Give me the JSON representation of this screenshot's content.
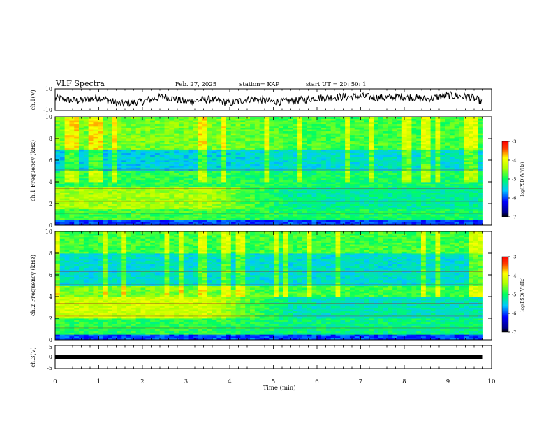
{
  "header": {
    "title": "VLF Spectra",
    "date": "Feb. 27, 2025",
    "station": "station= KAP",
    "start": "start  UT  =   20: 50: 1"
  },
  "colorbar": {
    "label": "log(PSD)(V²/Hz)",
    "ticks": [
      "-3",
      "-4",
      "-5",
      "-6",
      "-7"
    ]
  },
  "chart_data": [
    {
      "type": "line",
      "panel": "ch1-waveform",
      "ylabel": "ch.1(V)",
      "ylim": [
        -10,
        10
      ],
      "y_tick_labels": [
        "10",
        "-10"
      ],
      "x": [
        0,
        0.5,
        1,
        1.5,
        2,
        2.5,
        3,
        3.5,
        4,
        4.5,
        5,
        5.5,
        6,
        6.5,
        7,
        7.5,
        8,
        8.5,
        9,
        9.5,
        9.8
      ],
      "y": [
        1.5,
        -1,
        2,
        -4,
        -1.5,
        3,
        -2,
        0.5,
        -3,
        1,
        -2,
        -1,
        1.5,
        2.5,
        3,
        1.5,
        3,
        0.5,
        4,
        2.5,
        -2
      ]
    },
    {
      "type": "heatmap",
      "panel": "ch1-spectrogram",
      "ylabel": "ch.1 Frequency (kHz)",
      "ylim": [
        0,
        10
      ],
      "y_tick_labels": [
        "0",
        "2",
        "4",
        "6",
        "8",
        "10"
      ],
      "x_range_min": [
        0,
        9.8
      ],
      "zlim": [
        -7,
        -3
      ],
      "mean_log_psd_by_band_early": [
        {
          "band_khz": [
            0,
            0.5
          ],
          "value": -6.0
        },
        {
          "band_khz": [
            0.5,
            1.5
          ],
          "value": -4.8
        },
        {
          "band_khz": [
            1.5,
            3.5
          ],
          "value": -4.4
        },
        {
          "band_khz": [
            3.5,
            5
          ],
          "value": -4.9
        },
        {
          "band_khz": [
            5,
            7
          ],
          "value": -5.5
        },
        {
          "band_khz": [
            7,
            10
          ],
          "value": -4.6
        }
      ],
      "mean_log_psd_by_band_late": [
        {
          "band_khz": [
            0,
            0.5
          ],
          "value": -6.0
        },
        {
          "band_khz": [
            0.5,
            1.5
          ],
          "value": -5.0
        },
        {
          "band_khz": [
            1.5,
            3.5
          ],
          "value": -5.2
        },
        {
          "band_khz": [
            3.5,
            5
          ],
          "value": -5.0
        },
        {
          "band_khz": [
            5,
            7
          ],
          "value": -5.4
        },
        {
          "band_khz": [
            7,
            10
          ],
          "value": -4.8
        }
      ]
    },
    {
      "type": "heatmap",
      "panel": "ch2-spectrogram",
      "ylabel": "ch.2 Frequency (kHz)",
      "ylim": [
        0,
        10
      ],
      "y_tick_labels": [
        "0",
        "2",
        "4",
        "6",
        "8",
        "10"
      ],
      "x_range_min": [
        0,
        9.8
      ],
      "zlim": [
        -7,
        -3
      ],
      "mean_log_psd_by_band_early": [
        {
          "band_khz": [
            0,
            0.5
          ],
          "value": -6.0
        },
        {
          "band_khz": [
            0.5,
            2
          ],
          "value": -4.9
        },
        {
          "band_khz": [
            2,
            4
          ],
          "value": -4.2
        },
        {
          "band_khz": [
            4,
            5
          ],
          "value": -4.6
        },
        {
          "band_khz": [
            5,
            8
          ],
          "value": -5.4
        },
        {
          "band_khz": [
            8,
            10
          ],
          "value": -4.8
        }
      ],
      "mean_log_psd_by_band_late": [
        {
          "band_khz": [
            0,
            0.5
          ],
          "value": -6.0
        },
        {
          "band_khz": [
            0.5,
            2
          ],
          "value": -5.1
        },
        {
          "band_khz": [
            2,
            4
          ],
          "value": -5.3
        },
        {
          "band_khz": [
            4,
            5
          ],
          "value": -4.8
        },
        {
          "band_khz": [
            5,
            8
          ],
          "value": -5.4
        },
        {
          "band_khz": [
            8,
            10
          ],
          "value": -4.8
        }
      ]
    },
    {
      "type": "line",
      "panel": "ch3-waveform",
      "ylabel": "ch.3(V)",
      "ylim": [
        -5,
        5
      ],
      "y_tick_labels": [
        "5",
        "0",
        "-5"
      ],
      "x": [
        0,
        9.8
      ],
      "y": [
        0,
        0
      ]
    }
  ],
  "xaxis": {
    "label": "Time  (min)",
    "lim": [
      0,
      10
    ],
    "tick_labels": [
      "0",
      "1",
      "2",
      "3",
      "4",
      "5",
      "6",
      "7",
      "8",
      "9",
      "10"
    ]
  }
}
